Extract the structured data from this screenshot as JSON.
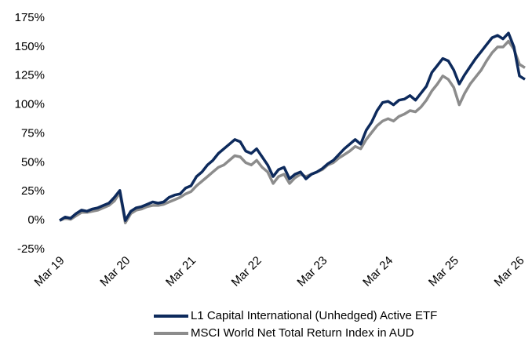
{
  "chart_data": {
    "type": "line",
    "categories": [
      "Mar 19",
      null,
      null,
      null,
      null,
      null,
      null,
      null,
      null,
      null,
      null,
      null,
      "Mar 20",
      null,
      null,
      null,
      null,
      null,
      null,
      null,
      null,
      null,
      null,
      null,
      "Mar 21",
      null,
      null,
      null,
      null,
      null,
      null,
      null,
      null,
      null,
      null,
      null,
      "Mar 22",
      null,
      null,
      null,
      null,
      null,
      null,
      null,
      null,
      null,
      null,
      null,
      "Mar 23",
      null,
      null,
      null,
      null,
      null,
      null,
      null,
      null,
      null,
      null,
      null,
      "Mar 24",
      null,
      null,
      null,
      null,
      null,
      null,
      null,
      null,
      null,
      null,
      null,
      "Mar 25",
      null,
      null,
      null,
      null,
      null,
      null,
      null,
      null,
      null,
      null,
      null,
      "Mar 26",
      null
    ],
    "series": [
      {
        "name": "L1 Capital International (Unhedged) Active ETF",
        "color": "#0d2a5c",
        "values": [
          0,
          3,
          2,
          6,
          9,
          8,
          10,
          11,
          13,
          15,
          20,
          26,
          0,
          8,
          11,
          12,
          14,
          16,
          15,
          16,
          20,
          22,
          23,
          28,
          30,
          38,
          42,
          48,
          52,
          58,
          62,
          66,
          70,
          68,
          60,
          58,
          62,
          55,
          48,
          38,
          44,
          46,
          36,
          40,
          42,
          36,
          40,
          42,
          45,
          49,
          52,
          57,
          62,
          66,
          70,
          66,
          78,
          85,
          95,
          102,
          103,
          100,
          104,
          105,
          108,
          104,
          110,
          116,
          128,
          134,
          140,
          138,
          130,
          118,
          126,
          133,
          140,
          146,
          152,
          158,
          160,
          157,
          162,
          150,
          125,
          122
        ]
      },
      {
        "name": "MSCI World Net Total Return Index in AUD",
        "color": "#8c8c8c",
        "values": [
          0,
          2,
          1,
          4,
          7,
          7,
          8,
          9,
          11,
          13,
          17,
          24,
          -2,
          6,
          9,
          10,
          12,
          13,
          13,
          14,
          16,
          18,
          20,
          23,
          25,
          30,
          34,
          38,
          42,
          46,
          48,
          52,
          56,
          55,
          50,
          48,
          52,
          46,
          42,
          32,
          38,
          40,
          32,
          37,
          40,
          38,
          40,
          42,
          44,
          48,
          50,
          54,
          57,
          60,
          64,
          62,
          70,
          76,
          82,
          86,
          88,
          86,
          90,
          92,
          95,
          94,
          98,
          104,
          112,
          118,
          125,
          122,
          115,
          100,
          110,
          118,
          124,
          130,
          138,
          145,
          150,
          150,
          155,
          148,
          135,
          132
        ]
      }
    ],
    "ylim": [
      -25,
      175
    ],
    "yticks": [
      {
        "value": -25,
        "label": "-25%"
      },
      {
        "value": 0,
        "label": "0%"
      },
      {
        "value": 25,
        "label": "25%"
      },
      {
        "value": 50,
        "label": "50%"
      },
      {
        "value": 75,
        "label": "75%"
      },
      {
        "value": 100,
        "label": "100%"
      },
      {
        "value": 125,
        "label": "125%"
      },
      {
        "value": 150,
        "label": "150%"
      },
      {
        "value": 175,
        "label": "175%"
      }
    ],
    "legend": "bottom"
  }
}
